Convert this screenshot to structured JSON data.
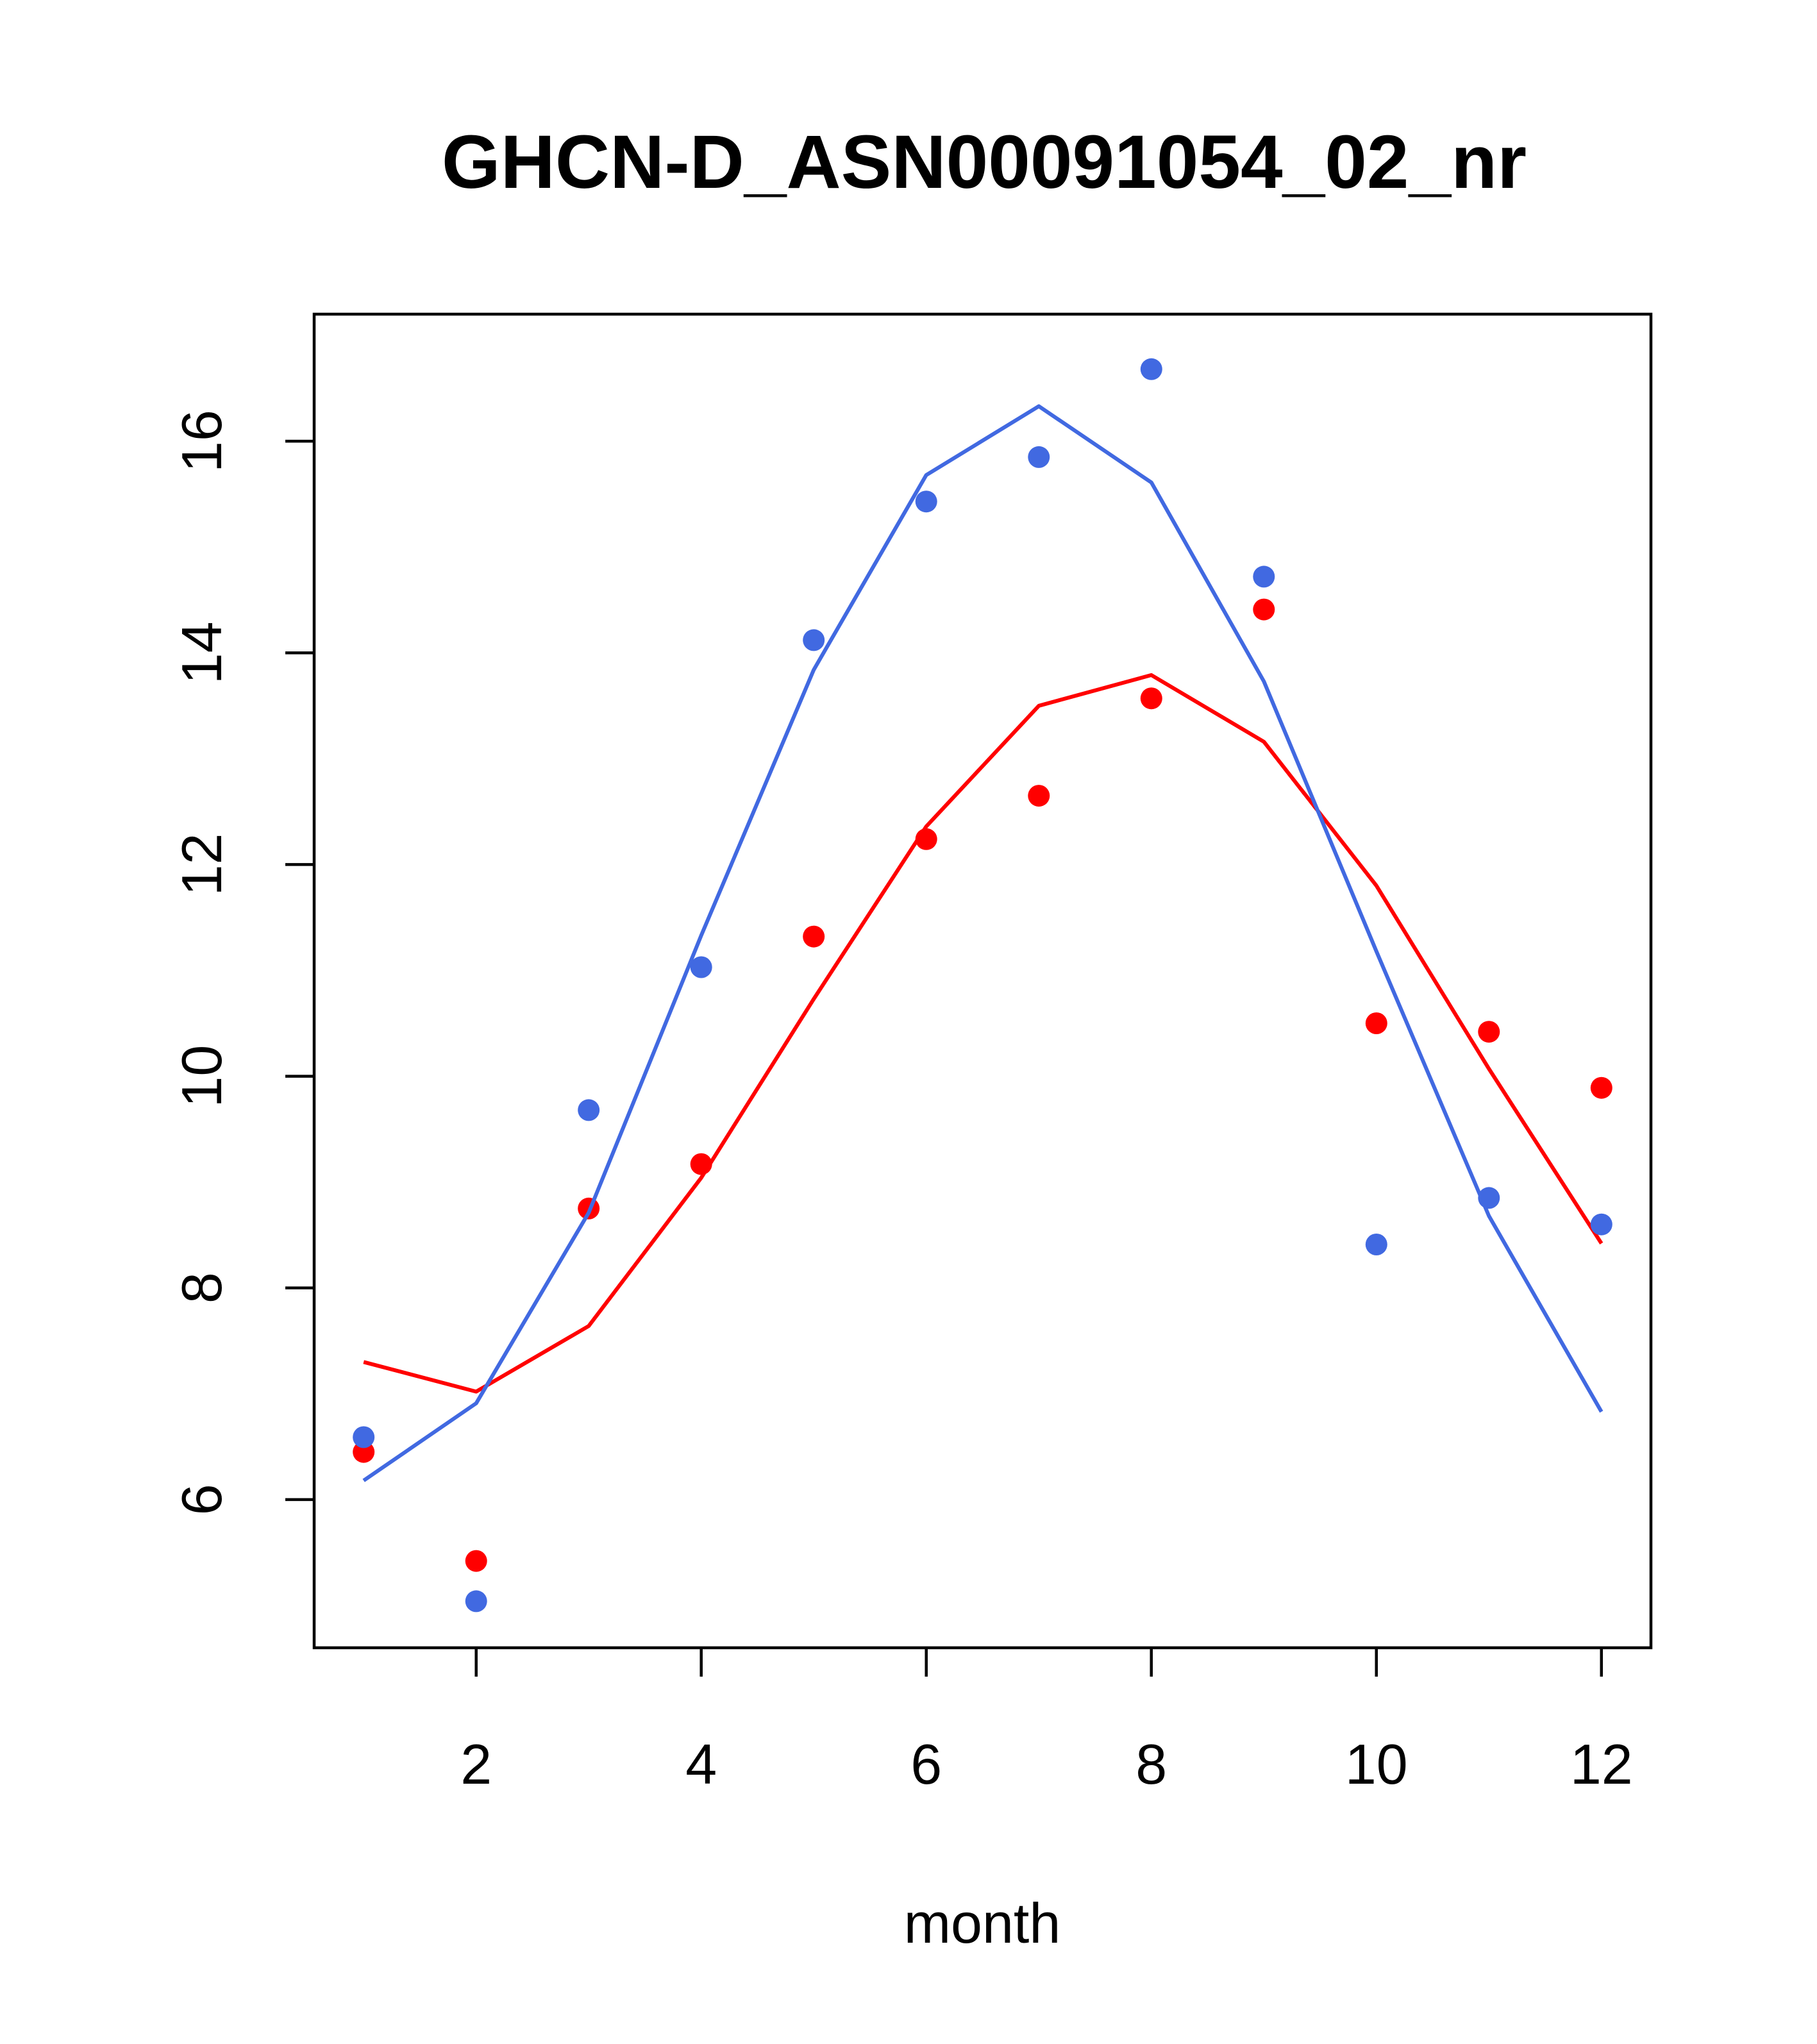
{
  "chart_data": {
    "type": "scatter",
    "title": "GHCN-D_ASN00091054_02_nr",
    "xlabel": "month",
    "ylabel": "",
    "xlim": [
      0.56,
      12.44
    ],
    "ylim": [
      4.6,
      17.2
    ],
    "x_ticks": [
      2,
      4,
      6,
      8,
      10,
      12
    ],
    "y_ticks": [
      6,
      8,
      10,
      12,
      14,
      16
    ],
    "grid": false,
    "series": [
      {
        "color": "#ff0000",
        "x": [
          1,
          2,
          3,
          4,
          5,
          6,
          7,
          8,
          9,
          10,
          11,
          12
        ],
        "points": [
          6.45,
          5.42,
          8.75,
          9.17,
          11.32,
          12.24,
          12.65,
          13.57,
          14.41,
          10.5,
          10.42,
          9.89
        ],
        "line": [
          7.3,
          7.02,
          7.64,
          9.04,
          10.73,
          12.36,
          13.5,
          13.79,
          13.16,
          11.8,
          10.07,
          8.42
        ]
      },
      {
        "color": "#4169e1",
        "x": [
          1,
          2,
          3,
          4,
          5,
          6,
          7,
          8,
          9,
          10,
          11,
          12
        ],
        "points": [
          6.59,
          5.04,
          9.68,
          11.03,
          14.12,
          15.43,
          15.85,
          16.68,
          14.72,
          8.41,
          8.85,
          8.6
        ],
        "line": [
          6.18,
          6.91,
          8.71,
          11.33,
          13.84,
          15.68,
          16.33,
          15.61,
          13.73,
          11.18,
          8.68,
          6.83
        ]
      }
    ]
  }
}
